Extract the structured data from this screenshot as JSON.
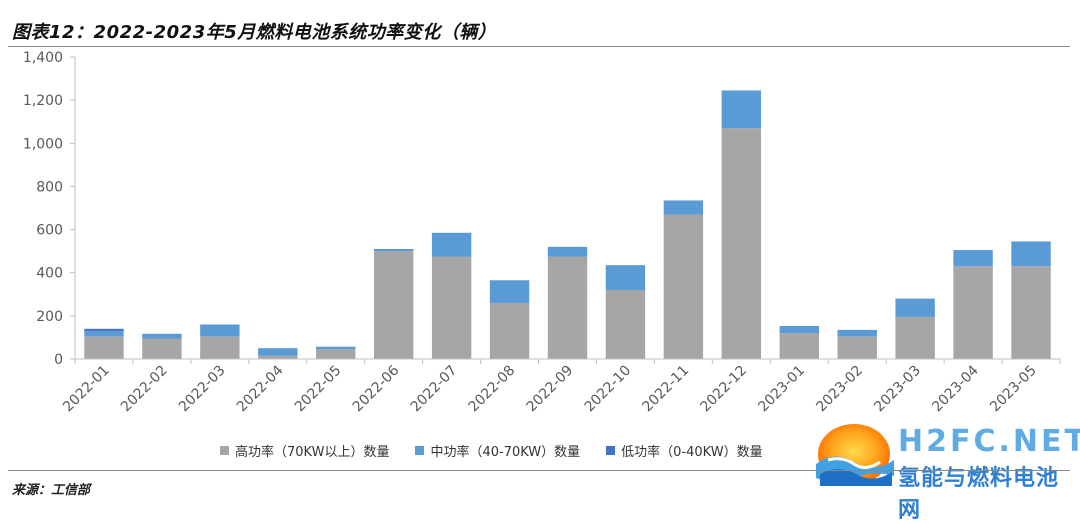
{
  "title": "图表12：2022-2023年5月燃料电池系统功率变化（辆）",
  "source": "来源：工信部",
  "watermark": {
    "brand": "H2FC.NET",
    "sub": "氢能与燃料电池网"
  },
  "colors": {
    "high": "#a6a6a6",
    "mid": "#5b9bd5",
    "low": "#4472c4",
    "axis": "#bfbfbf",
    "tick": "#595959"
  },
  "chart_data": {
    "type": "bar",
    "stacked": true,
    "categories": [
      "2022-01",
      "2022-02",
      "2022-03",
      "2022-04",
      "2022-05",
      "2022-06",
      "2022-07",
      "2022-08",
      "2022-09",
      "2022-10",
      "2022-11",
      "2022-12",
      "2023-01",
      "2023-02",
      "2023-03",
      "2023-04",
      "2023-05"
    ],
    "series": [
      {
        "name": "高功率（70KW以上）数量",
        "color": "#a6a6a6",
        "values": [
          105,
          95,
          105,
          15,
          45,
          500,
          475,
          260,
          475,
          320,
          670,
          1070,
          120,
          105,
          195,
          430,
          430
        ]
      },
      {
        "name": "中功率（40-70KW）数量",
        "color": "#5b9bd5",
        "values": [
          25,
          22,
          55,
          35,
          12,
          10,
          110,
          105,
          45,
          115,
          65,
          175,
          33,
          30,
          85,
          75,
          115
        ]
      },
      {
        "name": "低功率（0-40KW）数量",
        "color": "#4472c4",
        "values": [
          10,
          0,
          0,
          0,
          0,
          0,
          0,
          0,
          0,
          0,
          0,
          0,
          0,
          0,
          0,
          0,
          0
        ]
      }
    ],
    "ylim": [
      0,
      1400
    ],
    "yticks": [
      0,
      200,
      400,
      600,
      800,
      1000,
      1200,
      1400
    ],
    "ytick_labels": [
      "0",
      "200",
      "400",
      "600",
      "800",
      "1,000",
      "1,200",
      "1,400"
    ],
    "grid": false,
    "legend_position": "bottom"
  }
}
